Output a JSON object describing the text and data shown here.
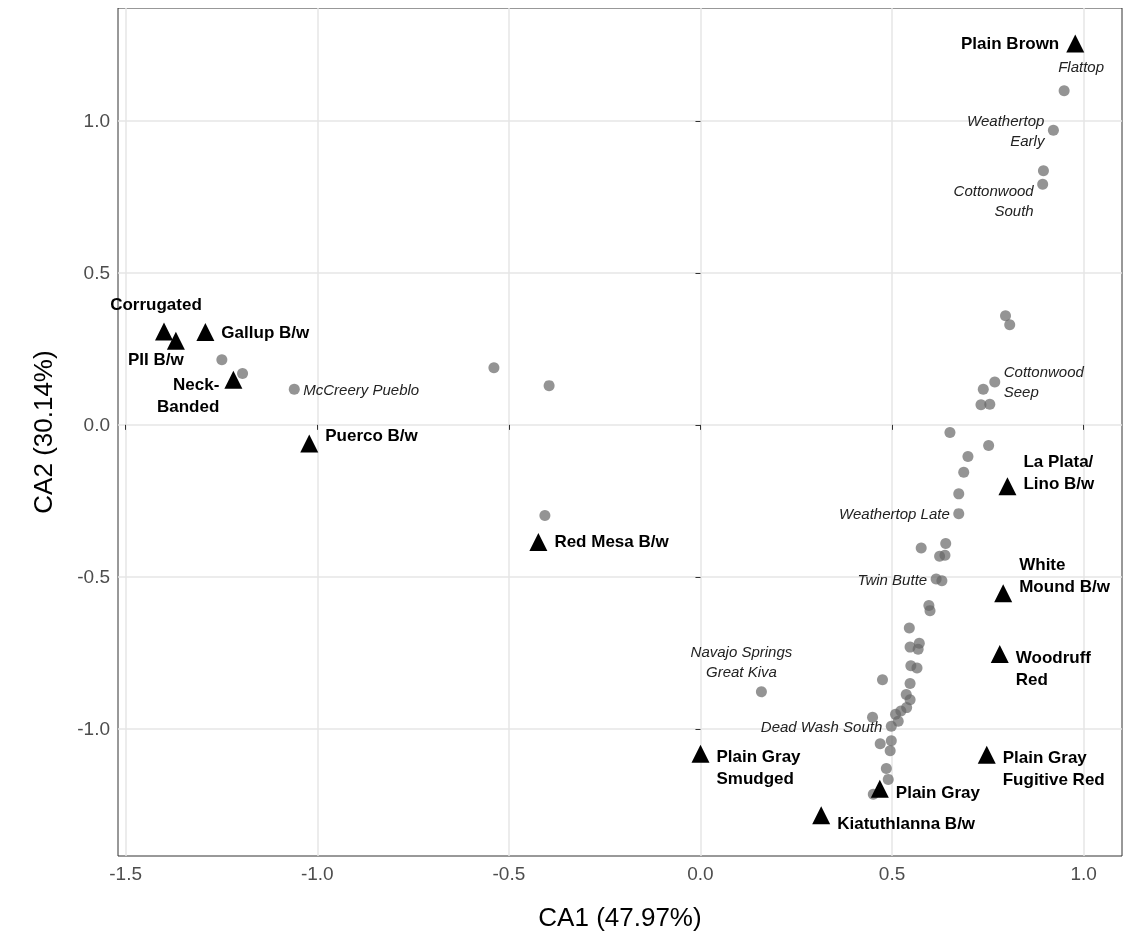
{
  "chart_data": {
    "type": "scatter",
    "xlabel": "CA1 (47.97%)",
    "ylabel": "CA2 (30.14%)",
    "xlim": [
      -1.52,
      1.1
    ],
    "ylim": [
      -1.418,
      1.371
    ],
    "xticks": [
      {
        "value": -1.5,
        "label": "-1.5"
      },
      {
        "value": -1,
        "label": "-1.0"
      },
      {
        "value": -0.5,
        "label": "-0.5"
      },
      {
        "value": 0,
        "label": "0.0"
      },
      {
        "value": 0.5,
        "label": "0.5"
      },
      {
        "value": 1,
        "label": "1.0"
      }
    ],
    "yticks": [
      {
        "value": -1,
        "label": "-1.0"
      },
      {
        "value": -0.5,
        "label": "-0.5"
      },
      {
        "value": 0,
        "label": "0.0"
      },
      {
        "value": 0.5,
        "label": "0.5"
      },
      {
        "value": 1,
        "label": "1.0"
      }
    ],
    "grid": true,
    "legend": false,
    "series": [
      {
        "color": "#666666",
        "marker": "circle",
        "x": [
          0.949,
          0.921,
          0.895,
          0.893,
          0.796,
          0.807,
          0.768,
          0.738,
          0.732,
          0.755,
          0.651,
          0.752,
          0.698,
          0.687,
          0.674,
          0.674,
          0.64,
          0.576,
          0.624,
          0.638,
          0.615,
          0.63,
          0.596,
          0.599,
          0.545,
          0.571,
          0.547,
          0.568,
          0.549,
          0.565,
          0.475,
          0.547,
          0.537,
          0.547,
          0.449,
          0.509,
          0.523,
          0.516,
          0.538,
          0.498,
          0.469,
          0.498,
          0.495,
          0.485,
          0.49,
          0.451,
          -1.249,
          -1.195,
          -1.06,
          -0.539,
          -0.395,
          -0.406,
          0.159
        ],
        "values": [
          1.099,
          0.969,
          0.836,
          0.791,
          0.359,
          0.329,
          0.141,
          0.117,
          0.066,
          0.068,
          -0.025,
          -0.068,
          -0.104,
          -0.156,
          -0.227,
          -0.292,
          -0.39,
          -0.405,
          -0.432,
          -0.429,
          -0.507,
          -0.513,
          -0.594,
          -0.611,
          -0.668,
          -0.718,
          -0.731,
          -0.738,
          -0.792,
          -0.8,
          -0.838,
          -0.851,
          -0.887,
          -0.904,
          -0.962,
          -0.952,
          -0.941,
          -0.975,
          -0.93,
          -0.991,
          -1.049,
          -1.039,
          -1.072,
          -1.13,
          -1.166,
          -1.215,
          0.214,
          0.169,
          0.117,
          0.188,
          0.129,
          -0.298,
          -0.878
        ]
      },
      {
        "name": "Plain Brown",
        "color": "#000000",
        "marker": "triangle",
        "x": [
          0.978
        ],
        "values": [
          1.254
        ]
      },
      {
        "name": "Corrugated",
        "color": "#000000",
        "marker": "triangle",
        "x": [
          -1.4
        ],
        "values": [
          0.307
        ]
      },
      {
        "name": "PII B/w",
        "color": "#000000",
        "marker": "triangle",
        "x": [
          -1.369
        ],
        "values": [
          0.277
        ]
      },
      {
        "name": "Gallup B/w",
        "color": "#000000",
        "marker": "triangle",
        "x": [
          -1.292
        ],
        "values": [
          0.305
        ]
      },
      {
        "name": "Neck-\nBanded",
        "color": "#000000",
        "marker": "triangle",
        "x": [
          -1.219
        ],
        "values": [
          0.148
        ]
      },
      {
        "name": "Puerco B/w",
        "color": "#000000",
        "marker": "triangle",
        "x": [
          -1.021
        ],
        "values": [
          -0.061
        ]
      },
      {
        "name": "Red Mesa B/w",
        "color": "#000000",
        "marker": "triangle",
        "x": [
          -0.423
        ],
        "values": [
          -0.385
        ]
      },
      {
        "name": "La Plata/\nLino B/w",
        "color": "#000000",
        "marker": "triangle",
        "x": [
          0.801
        ],
        "values": [
          -0.202
        ]
      },
      {
        "name": "White\nMound B/w",
        "color": "#000000",
        "marker": "triangle",
        "x": [
          0.79
        ],
        "values": [
          -0.554
        ]
      },
      {
        "name": "Woodruff\nRed",
        "color": "#000000",
        "marker": "triangle",
        "x": [
          0.781
        ],
        "values": [
          -0.754
        ]
      },
      {
        "name": "Plain Gray\nFugitive Red",
        "color": "#000000",
        "marker": "triangle",
        "x": [
          0.747
        ],
        "values": [
          -1.085
        ]
      },
      {
        "name": "Plain Gray\nSmudged",
        "color": "#000000",
        "marker": "triangle",
        "x": [
          0.0
        ],
        "values": [
          -1.082
        ]
      },
      {
        "name": "Plain Gray",
        "color": "#000000",
        "marker": "triangle",
        "x": [
          0.468
        ],
        "values": [
          -1.197
        ]
      },
      {
        "name": "Kiatuthlanna B/w",
        "color": "#000000",
        "marker": "triangle",
        "x": [
          0.315
        ],
        "values": [
          -1.284
        ]
      }
    ],
    "annotations": [
      {
        "text": "Flattop",
        "x": 0.949,
        "y": 1.099
      },
      {
        "text": "Weathertop\nEarly",
        "x": 0.921,
        "y": 0.969
      },
      {
        "text": "Cottonwood\nSouth",
        "x": 0.893,
        "y": 0.791
      },
      {
        "text": "Cottonwood\nSeep",
        "x": 0.768,
        "y": 0.141
      },
      {
        "text": "McCreery Pueblo",
        "x": -1.06,
        "y": 0.117
      },
      {
        "text": "Weathertop Late",
        "x": 0.674,
        "y": -0.292
      },
      {
        "text": "Twin Butte",
        "x": 0.615,
        "y": -0.507
      },
      {
        "text": "Navajo Springs\nGreat Kiva",
        "x": 0.159,
        "y": -0.878
      },
      {
        "text": "Dead Wash South",
        "x": 0.498,
        "y": -0.991
      }
    ]
  }
}
